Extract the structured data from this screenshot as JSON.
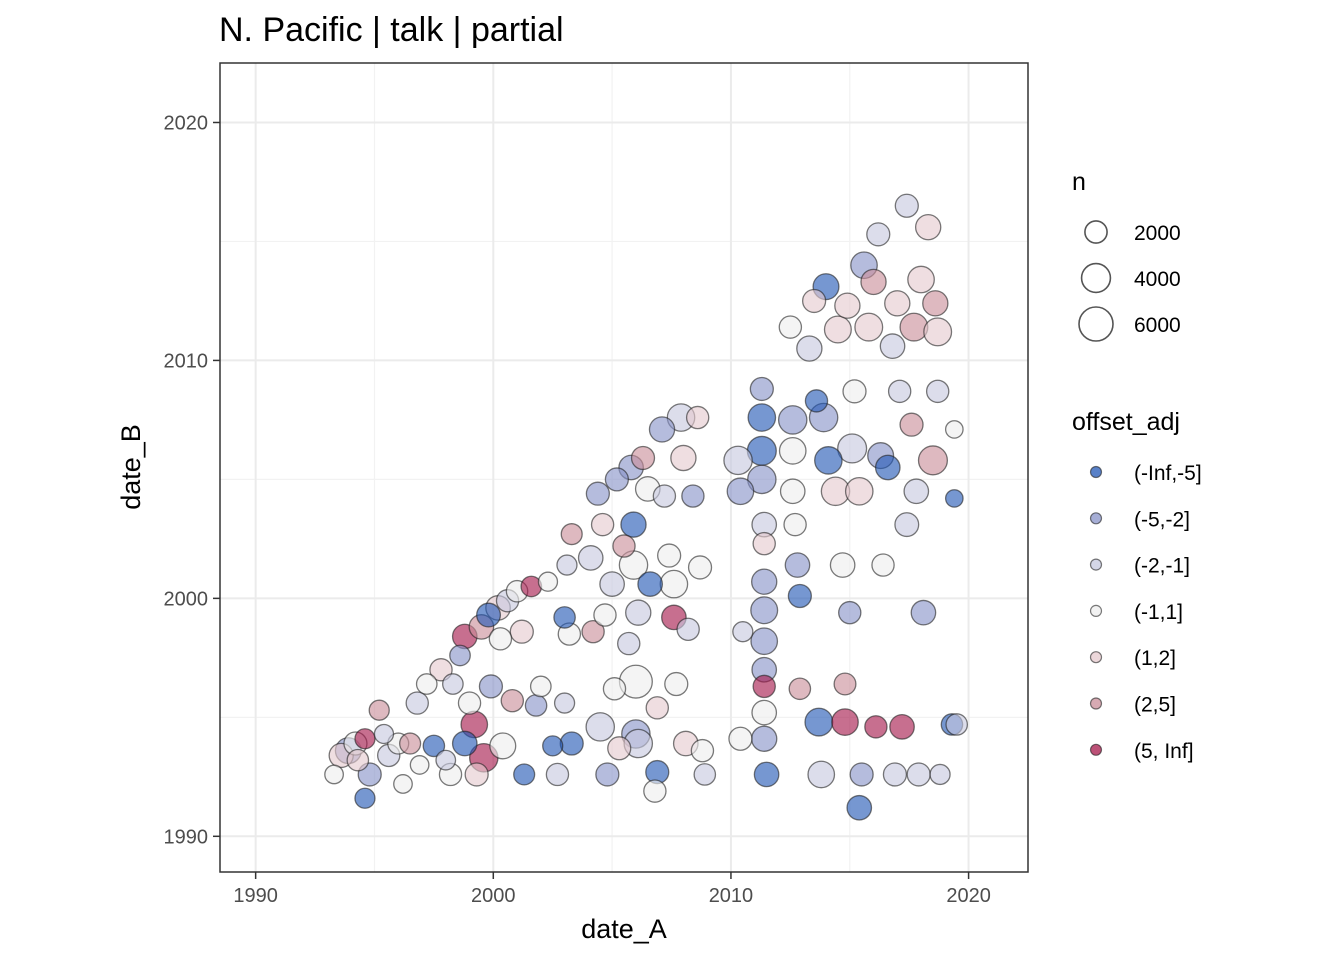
{
  "chart_data": {
    "type": "scatter",
    "title": "N. Pacific | talk | partial",
    "xlabel": "date_A",
    "ylabel": "date_B",
    "xlim": [
      1988.5,
      2022.5
    ],
    "ylim": [
      1988.5,
      2022.5
    ],
    "xticks": [
      1990,
      2000,
      2010,
      2020
    ],
    "yticks": [
      1990,
      2000,
      2010,
      2020
    ],
    "xtick_labels": [
      "1990",
      "2000",
      "2010",
      "2020"
    ],
    "ytick_labels": [
      "1990",
      "2000",
      "2010",
      "2020"
    ],
    "grid": true,
    "legend_position": "right",
    "size_legend": {
      "title": "n",
      "items": [
        {
          "label": "2000",
          "value": 2000
        },
        {
          "label": "4000",
          "value": 4000
        },
        {
          "label": "6000",
          "value": 6000
        }
      ]
    },
    "color_legend": {
      "title": "offset_adj",
      "items": [
        {
          "label": "(-Inf,-5]",
          "color": "#2257b5"
        },
        {
          "label": "(-5,-2]",
          "color": "#8893c8"
        },
        {
          "label": "(-2,-1]",
          "color": "#c6c8df"
        },
        {
          "label": "(-1,1]",
          "color": "#eeeeee"
        },
        {
          "label": "(1,2]",
          "color": "#e5c9ce"
        },
        {
          "label": "(2,5]",
          "color": "#c98e9a"
        },
        {
          "label": "(5, Inf]",
          "color": "#a5174a"
        }
      ]
    },
    "points": [
      [
        1993.3,
        1992.6,
        1200,
        4
      ],
      [
        1993.6,
        1993.4,
        2500,
        5
      ],
      [
        1993.9,
        1993.6,
        3000,
        2
      ],
      [
        1994.2,
        1993.9,
        2200,
        4
      ],
      [
        1994.3,
        1993.2,
        1800,
        5
      ],
      [
        1994.6,
        1994.1,
        1500,
        7
      ],
      [
        1994.8,
        1992.6,
        2200,
        2
      ],
      [
        1994.6,
        1991.6,
        1500,
        1
      ],
      [
        1995.2,
        1995.3,
        1500,
        6
      ],
      [
        1995.4,
        1994.3,
        1300,
        3
      ],
      [
        1995.6,
        1993.4,
        2000,
        3
      ],
      [
        1996.0,
        1993.9,
        1700,
        0
      ],
      [
        1996.2,
        1992.2,
        1200,
        4
      ],
      [
        1996.5,
        1993.9,
        1700,
        6
      ],
      [
        1996.8,
        1995.6,
        2000,
        3
      ],
      [
        1996.9,
        1993.0,
        1200,
        4
      ],
      [
        1997.2,
        1996.4,
        1600,
        4
      ],
      [
        1997.5,
        1993.8,
        1800,
        1
      ],
      [
        1997.8,
        1997.0,
        2000,
        5
      ],
      [
        1998.0,
        1993.2,
        1400,
        3
      ],
      [
        1998.2,
        1992.6,
        2000,
        4
      ],
      [
        1998.3,
        1996.4,
        1600,
        3
      ],
      [
        1998.6,
        1997.6,
        1600,
        2
      ],
      [
        1998.8,
        1998.4,
        2600,
        7
      ],
      [
        1998.8,
        1993.9,
        2600,
        1
      ],
      [
        1999.0,
        1995.6,
        2000,
        0
      ],
      [
        1999.2,
        1994.7,
        3200,
        7
      ],
      [
        1999.3,
        1992.6,
        2200,
        5
      ],
      [
        1999.5,
        1998.8,
        2600,
        6
      ],
      [
        1999.6,
        1993.3,
        3800,
        7
      ],
      [
        1999.8,
        1999.3,
        2400,
        1
      ],
      [
        1999.9,
        1996.3,
        2200,
        2
      ],
      [
        2000.2,
        1999.6,
        2600,
        5
      ],
      [
        2000.3,
        1998.3,
        2000,
        0
      ],
      [
        2000.4,
        1993.8,
        3000,
        4
      ],
      [
        2000.6,
        1999.9,
        2000,
        3
      ],
      [
        2000.8,
        1995.7,
        2000,
        6
      ],
      [
        2001.0,
        2000.3,
        1800,
        0
      ],
      [
        2001.2,
        1998.6,
        2200,
        5
      ],
      [
        2001.3,
        1992.6,
        1700,
        1
      ],
      [
        2001.6,
        2000.5,
        1600,
        7
      ],
      [
        2001.8,
        1995.5,
        1800,
        2
      ],
      [
        2002.0,
        1996.3,
        1600,
        4
      ],
      [
        2002.3,
        2000.7,
        1300,
        0
      ],
      [
        2002.5,
        1993.8,
        1500,
        1
      ],
      [
        2002.7,
        1992.6,
        2000,
        3
      ],
      [
        2003.0,
        1999.2,
        1800,
        1
      ],
      [
        2003.0,
        1995.6,
        1500,
        3
      ],
      [
        2003.2,
        1998.5,
        2000,
        4
      ],
      [
        2003.3,
        2002.7,
        1700,
        6
      ],
      [
        2003.3,
        1993.9,
        2200,
        1
      ],
      [
        2003.1,
        2001.4,
        1500,
        3
      ],
      [
        2004.1,
        2001.7,
        2600,
        3
      ],
      [
        2004.2,
        1998.6,
        2000,
        6
      ],
      [
        2004.4,
        2004.4,
        2200,
        2
      ],
      [
        2004.5,
        1994.6,
        3800,
        3
      ],
      [
        2004.6,
        2003.1,
        2000,
        5
      ],
      [
        2004.7,
        1999.3,
        2000,
        4
      ],
      [
        2004.8,
        1992.6,
        2200,
        2
      ],
      [
        2005.0,
        2000.6,
        2600,
        3
      ],
      [
        2005.1,
        1996.2,
        2000,
        0
      ],
      [
        2005.2,
        2005.0,
        2200,
        2
      ],
      [
        2005.3,
        1993.7,
        2200,
        5
      ],
      [
        2005.5,
        2002.2,
        2000,
        6
      ],
      [
        2005.7,
        1998.1,
        2000,
        3
      ],
      [
        2005.8,
        2005.5,
        2600,
        2
      ],
      [
        2005.9,
        2003.1,
        2800,
        1
      ],
      [
        2005.9,
        2001.4,
        3800,
        0
      ],
      [
        2006.0,
        1996.5,
        5500,
        0
      ],
      [
        2006.0,
        1994.3,
        3800,
        2
      ],
      [
        2006.1,
        1999.4,
        2800,
        3
      ],
      [
        2006.1,
        1993.9,
        3800,
        3
      ],
      [
        2006.3,
        2005.9,
        2200,
        6
      ],
      [
        2006.5,
        2004.6,
        2600,
        4
      ],
      [
        2006.6,
        2000.6,
        2600,
        1
      ],
      [
        2006.8,
        1991.9,
        2000,
        4
      ],
      [
        2006.9,
        1992.7,
        2200,
        1
      ],
      [
        2006.9,
        1995.4,
        2000,
        5
      ],
      [
        2007.1,
        2007.1,
        2800,
        2
      ],
      [
        2007.2,
        2004.3,
        2000,
        3
      ],
      [
        2007.4,
        2001.8,
        2200,
        4
      ],
      [
        2007.6,
        2000.6,
        3500,
        0
      ],
      [
        2007.6,
        1999.2,
        2600,
        7
      ],
      [
        2007.7,
        1996.4,
        2200,
        4
      ],
      [
        2007.9,
        2007.6,
        3500,
        3
      ],
      [
        2008.0,
        2005.9,
        2800,
        5
      ],
      [
        2008.1,
        1993.9,
        2600,
        5
      ],
      [
        2008.2,
        1998.7,
        2000,
        3
      ],
      [
        2008.4,
        2004.3,
        2000,
        2
      ],
      [
        2008.6,
        2007.6,
        2000,
        5
      ],
      [
        2008.7,
        2001.3,
        2200,
        4
      ],
      [
        2008.8,
        1993.6,
        2000,
        4
      ],
      [
        2008.9,
        1992.6,
        1800,
        3
      ],
      [
        2010.5,
        1998.6,
        1500,
        3
      ],
      [
        2010.3,
        2005.8,
        3800,
        3
      ],
      [
        2010.4,
        1994.1,
        2200,
        0
      ],
      [
        2010.4,
        2004.5,
        3200,
        2
      ],
      [
        2011.3,
        2008.8,
        2200,
        2
      ],
      [
        2011.3,
        2007.6,
        3500,
        1
      ],
      [
        2011.3,
        2006.2,
        4000,
        1
      ],
      [
        2011.3,
        2005.0,
        3800,
        2
      ],
      [
        2011.4,
        2003.1,
        2600,
        3
      ],
      [
        2011.4,
        2002.3,
        2000,
        5
      ],
      [
        2011.4,
        2000.7,
        2800,
        2
      ],
      [
        2011.4,
        1999.5,
        3300,
        2
      ],
      [
        2011.4,
        1998.2,
        3200,
        2
      ],
      [
        2011.4,
        1997.0,
        2600,
        2
      ],
      [
        2011.4,
        1996.3,
        2000,
        7
      ],
      [
        2011.4,
        1995.2,
        2600,
        4
      ],
      [
        2011.4,
        1994.1,
        2800,
        2
      ],
      [
        2011.5,
        1992.6,
        2600,
        1
      ],
      [
        2012.5,
        2011.4,
        2000,
        4
      ],
      [
        2012.6,
        2007.5,
        3800,
        2
      ],
      [
        2012.6,
        2006.2,
        3200,
        0
      ],
      [
        2012.6,
        2004.5,
        2600,
        4
      ],
      [
        2012.7,
        2003.1,
        2000,
        4
      ],
      [
        2012.8,
        2001.4,
        2600,
        2
      ],
      [
        2012.9,
        2000.1,
        2200,
        1
      ],
      [
        2012.9,
        1996.2,
        1800,
        6
      ],
      [
        2013.3,
        2010.5,
        2800,
        3
      ],
      [
        2013.5,
        2012.5,
        2200,
        5
      ],
      [
        2013.6,
        2008.3,
        2000,
        1
      ],
      [
        2013.7,
        1994.8,
        3600,
        1
      ],
      [
        2013.8,
        1992.6,
        3200,
        3
      ],
      [
        2013.9,
        2007.6,
        3800,
        2
      ],
      [
        2014.0,
        2013.1,
        3000,
        1
      ],
      [
        2014.1,
        2005.8,
        3500,
        1
      ],
      [
        2014.4,
        2004.5,
        3800,
        5
      ],
      [
        2014.5,
        2011.3,
        3300,
        5
      ],
      [
        2014.7,
        2001.4,
        2600,
        0
      ],
      [
        2014.8,
        1996.4,
        1900,
        6
      ],
      [
        2014.8,
        1994.8,
        3200,
        7
      ],
      [
        2014.9,
        2012.3,
        2800,
        5
      ],
      [
        2015.0,
        1999.4,
        2000,
        2
      ],
      [
        2015.1,
        2006.3,
        4000,
        3
      ],
      [
        2015.2,
        2008.7,
        2200,
        0
      ],
      [
        2015.4,
        2004.5,
        3500,
        5
      ],
      [
        2015.5,
        1992.6,
        2200,
        2
      ],
      [
        2015.4,
        1991.2,
        2600,
        1
      ],
      [
        2015.6,
        2014.0,
        3200,
        2
      ],
      [
        2015.8,
        2011.4,
        3600,
        5
      ],
      [
        2016.0,
        2013.3,
        2800,
        6
      ],
      [
        2016.1,
        1994.6,
        2000,
        7
      ],
      [
        2016.2,
        2015.3,
        2200,
        3
      ],
      [
        2016.3,
        2006.0,
        3000,
        2
      ],
      [
        2016.4,
        2001.4,
        2000,
        0
      ],
      [
        2016.6,
        2005.5,
        2600,
        1
      ],
      [
        2016.8,
        2010.6,
        2600,
        3
      ],
      [
        2016.9,
        1992.6,
        2200,
        3
      ],
      [
        2017.0,
        2012.4,
        2800,
        5
      ],
      [
        2017.1,
        2008.7,
        2000,
        3
      ],
      [
        2017.2,
        1994.6,
        2600,
        7
      ],
      [
        2017.4,
        2016.5,
        2200,
        3
      ],
      [
        2017.4,
        2003.1,
        2400,
        3
      ],
      [
        2017.6,
        2007.3,
        2200,
        6
      ],
      [
        2017.7,
        2011.4,
        3600,
        6
      ],
      [
        2017.8,
        2004.5,
        2600,
        3
      ],
      [
        2017.9,
        1992.6,
        2200,
        3
      ],
      [
        2018.0,
        2013.4,
        3200,
        5
      ],
      [
        2018.1,
        1999.4,
        2600,
        2
      ],
      [
        2018.3,
        2015.6,
        2800,
        5
      ],
      [
        2018.5,
        2005.8,
        4000,
        6
      ],
      [
        2018.6,
        2012.4,
        2800,
        6
      ],
      [
        2018.7,
        2011.2,
        3600,
        5
      ],
      [
        2018.7,
        2008.7,
        2000,
        3
      ],
      [
        2018.8,
        1992.6,
        1500,
        3
      ],
      [
        2019.3,
        1994.7,
        1800,
        1
      ],
      [
        2019.5,
        1994.7,
        1800,
        3
      ],
      [
        2019.4,
        2004.2,
        1000,
        1
      ],
      [
        2019.4,
        2007.1,
        1000,
        4
      ]
    ]
  }
}
